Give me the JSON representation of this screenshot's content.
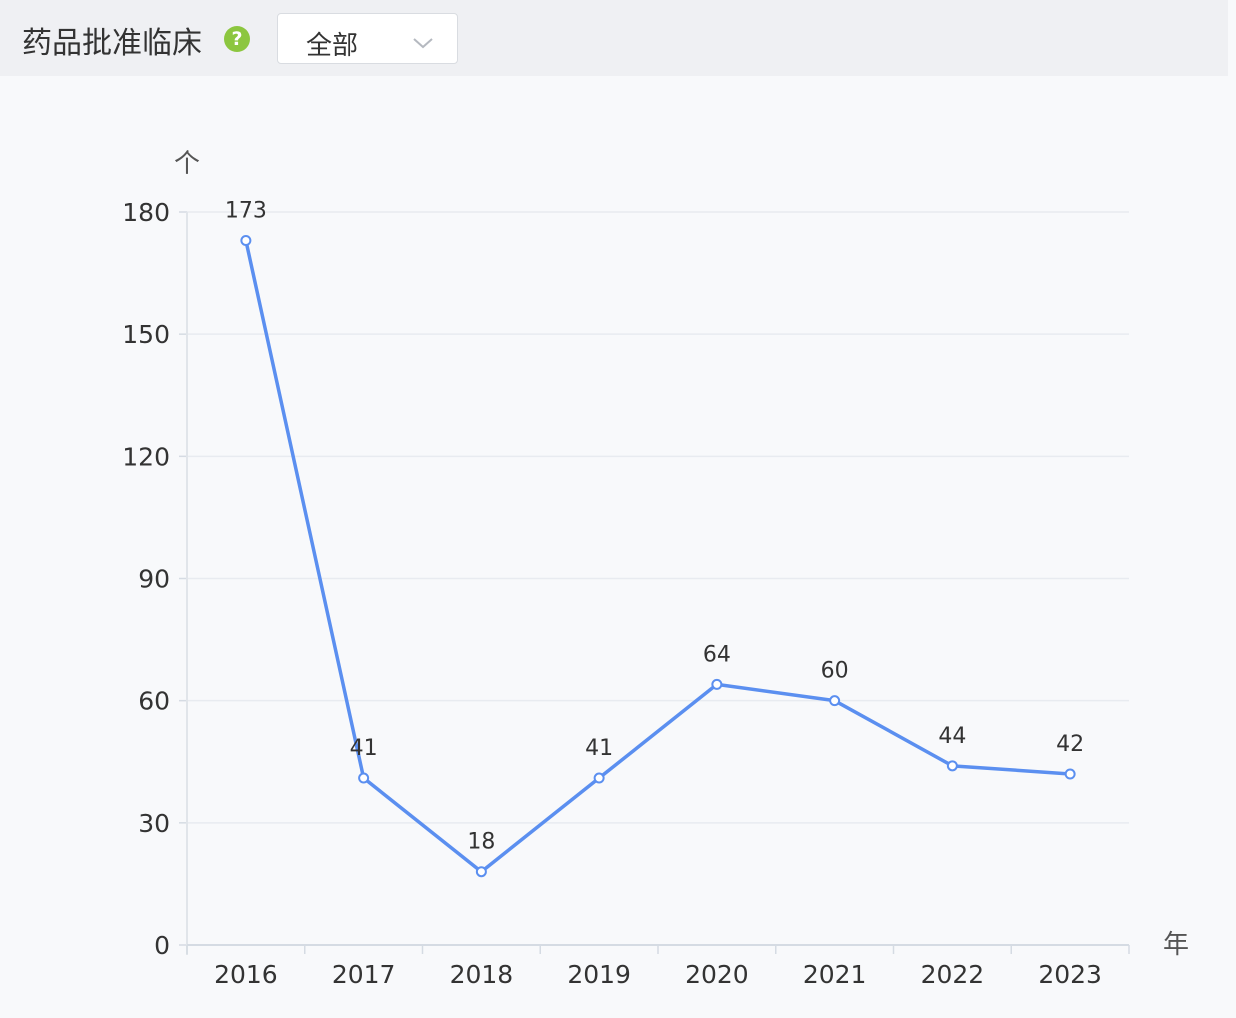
{
  "header": {
    "title": "药品批准临床",
    "help_icon": "question-circle-icon",
    "select": {
      "value": "全部",
      "icon": "chevron-down-icon"
    }
  },
  "colors": {
    "line": "#5b8ff0",
    "accent": "#8cc63f",
    "grid": "#e8ebf0"
  },
  "chart_data": {
    "type": "line",
    "title": "",
    "ylabel": "个",
    "xlabel": "年",
    "categories": [
      "2016",
      "2017",
      "2018",
      "2019",
      "2020",
      "2021",
      "2022",
      "2023"
    ],
    "values": [
      173,
      41,
      18,
      41,
      64,
      60,
      44,
      42
    ],
    "ylim": [
      0,
      180
    ],
    "yticks": [
      0,
      30,
      60,
      90,
      120,
      150,
      180
    ],
    "grid": true,
    "legend": "none"
  }
}
